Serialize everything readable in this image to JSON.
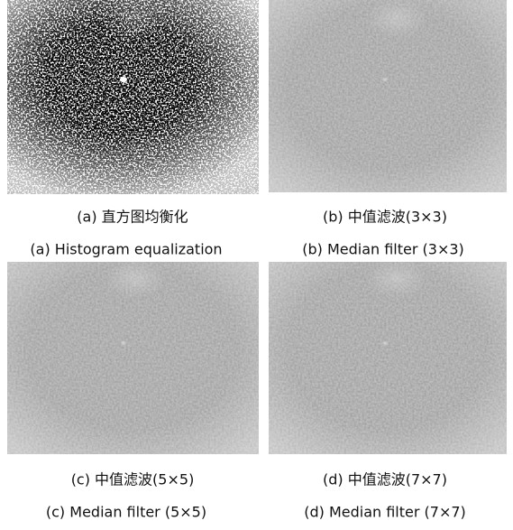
{
  "panels": [
    {
      "caption_cn": "(a) 直方图均衡化",
      "caption_en": "(a) Histogram equalization"
    },
    {
      "caption_cn": "(b) 中值滤波(3×3)",
      "caption_en": "(b) Median filter (3×3)"
    },
    {
      "caption_cn": "(c) 中值滤波(5×5)",
      "caption_en": "(c) Median filter (5×5)"
    },
    {
      "caption_cn": "(d) 中值滤波(7×7)",
      "caption_en": "(d) Median filter (7×7)"
    }
  ]
}
